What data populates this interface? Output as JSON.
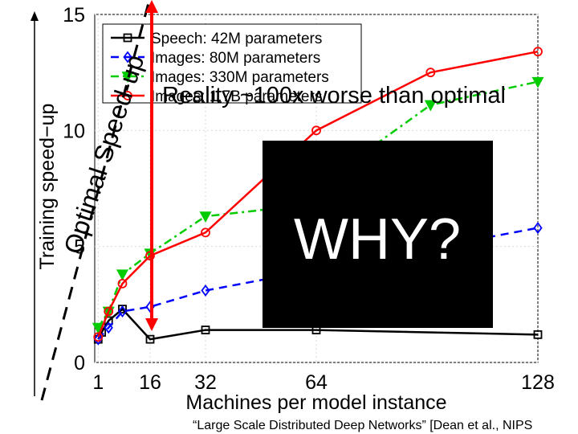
{
  "chart_data": {
    "type": "line",
    "title": "",
    "xlabel": "Machines per model instance",
    "ylabel": "Training speed−up",
    "xlim": [
      0,
      128
    ],
    "ylim": [
      0,
      15
    ],
    "xticks": [
      "1",
      "16",
      "32",
      "64",
      "128"
    ],
    "yticks": [
      "0",
      "5",
      "10",
      "15"
    ],
    "grid": true,
    "legend_position": "top-left",
    "series": [
      {
        "name": "Speech: 42M parameters",
        "color": "#000000",
        "dash": "solid",
        "marker": "square",
        "x": [
          1,
          2,
          4,
          8,
          16,
          32,
          64,
          128
        ],
        "y": [
          1.0,
          1.3,
          1.8,
          2.3,
          1.0,
          1.4,
          1.4,
          1.2
        ]
      },
      {
        "name": "Images: 80M parameters",
        "color": "#0000ff",
        "dash": "dashed",
        "marker": "diamond",
        "x": [
          1,
          4,
          8,
          16,
          32,
          128
        ],
        "y": [
          1.0,
          1.5,
          2.2,
          2.4,
          3.1,
          5.8
        ]
      },
      {
        "name": "Images: 330M parameters",
        "color": "#00cc00",
        "dash": "dashdot",
        "marker": "triangle-down",
        "x": [
          1,
          4,
          8,
          16,
          32,
          56,
          97,
          128
        ],
        "y": [
          1.5,
          2.2,
          3.8,
          4.7,
          6.3,
          6.7,
          11.1,
          12.1
        ]
      },
      {
        "name": "Images: 1.7B parameters",
        "color": "#ff0000",
        "dash": "solid",
        "marker": "circle",
        "x": [
          1,
          4,
          8,
          16,
          32,
          64,
          97,
          128
        ],
        "y": [
          1.1,
          2.2,
          3.4,
          4.6,
          5.6,
          10.0,
          12.5,
          13.4
        ]
      }
    ]
  },
  "annotations": {
    "optimal_label": "Optimal Speed-up",
    "reality_label": "Reality ~100x worse than optimal",
    "why_label": "WHY?",
    "citation": "“Large Scale Distributed Deep Networks” [Dean et al., NIPS"
  },
  "colors": {
    "arrow": "#ff0000",
    "why_box": "#000000",
    "why_text": "#ffffff"
  }
}
